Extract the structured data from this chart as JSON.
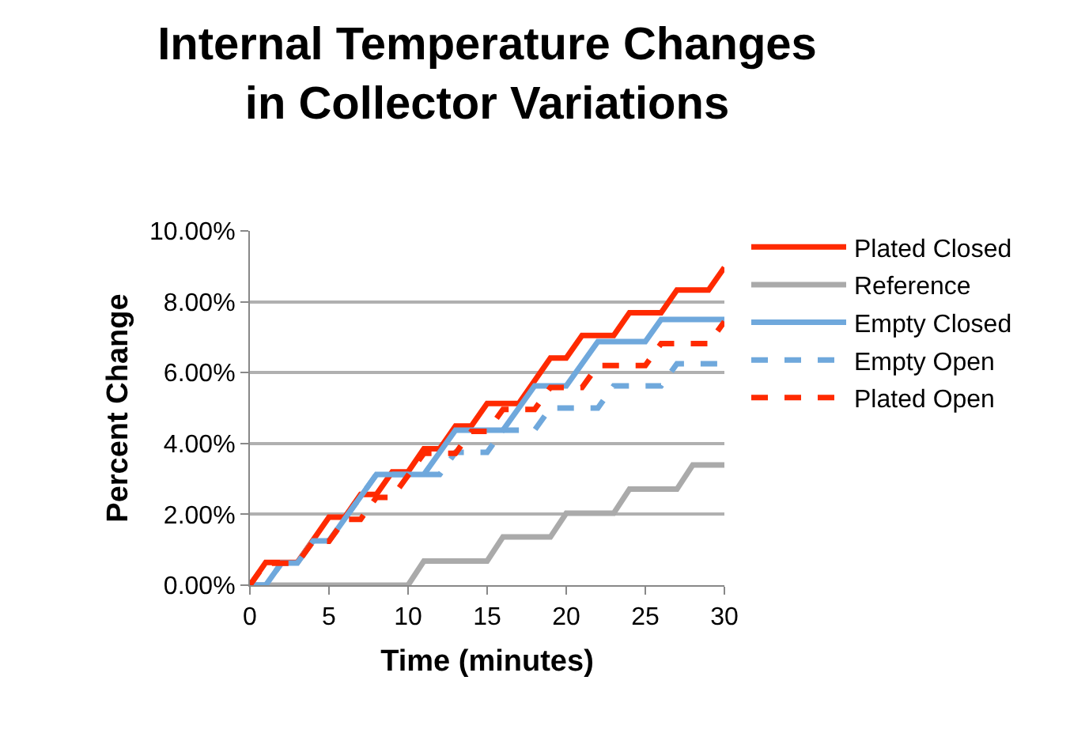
{
  "chart_data": {
    "type": "line",
    "title": "Internal Temperature Changes in Collector Variations",
    "xlabel": "Time (minutes)",
    "ylabel": "Percent Change",
    "x": [
      0,
      1,
      2,
      3,
      4,
      5,
      6,
      7,
      8,
      9,
      10,
      11,
      12,
      13,
      14,
      15,
      16,
      17,
      18,
      19,
      20,
      21,
      22,
      23,
      24,
      25,
      26,
      27,
      28,
      29,
      30
    ],
    "series": [
      {
        "name": "Plated Closed",
        "color": "#ff2a00",
        "line_style": "solid",
        "values": [
          0,
          0.64,
          0.64,
          0.64,
          1.28,
          1.92,
          1.92,
          2.56,
          2.56,
          3.2,
          3.2,
          3.85,
          3.85,
          4.49,
          4.49,
          5.13,
          5.13,
          5.13,
          5.77,
          6.41,
          6.41,
          7.05,
          7.05,
          7.05,
          7.69,
          7.69,
          7.69,
          8.33,
          8.33,
          8.33,
          8.97
        ]
      },
      {
        "name": "Reference",
        "color": "#aaaaaa",
        "line_style": "solid",
        "values": [
          0,
          0,
          0,
          0,
          0,
          0,
          0,
          0,
          0,
          0,
          0,
          0.68,
          0.68,
          0.68,
          0.68,
          0.68,
          1.36,
          1.36,
          1.36,
          1.36,
          2.03,
          2.03,
          2.03,
          2.03,
          2.71,
          2.71,
          2.71,
          2.71,
          3.39,
          3.39,
          3.39
        ]
      },
      {
        "name": "Empty Closed",
        "color": "#6fa8dc",
        "line_style": "solid",
        "values": [
          0,
          0,
          0.625,
          0.625,
          1.25,
          1.25,
          1.875,
          2.5,
          3.125,
          3.125,
          3.125,
          3.125,
          3.75,
          4.375,
          4.375,
          4.375,
          4.375,
          5.0,
          5.625,
          5.625,
          5.625,
          6.25,
          6.875,
          6.875,
          6.875,
          6.875,
          7.5,
          7.5,
          7.5,
          7.5,
          7.5
        ]
      },
      {
        "name": "Empty Open",
        "color": "#6fa8dc",
        "line_style": "dashed",
        "values": [
          0,
          0,
          0.625,
          0.625,
          1.25,
          1.25,
          1.875,
          2.5,
          3.125,
          3.125,
          3.125,
          3.125,
          3.125,
          3.75,
          3.75,
          3.75,
          4.375,
          4.375,
          4.375,
          5.0,
          5.0,
          5.0,
          5.0,
          5.625,
          5.625,
          5.625,
          5.625,
          6.25,
          6.25,
          6.25,
          6.25
        ]
      },
      {
        "name": "Plated Open",
        "color": "#ff2a00",
        "line_style": "dashed",
        "values": [
          0,
          0.62,
          0.62,
          0.62,
          1.24,
          1.24,
          1.86,
          1.86,
          2.48,
          2.48,
          3.1,
          3.72,
          3.72,
          3.72,
          4.34,
          4.34,
          4.96,
          4.96,
          4.96,
          5.58,
          5.58,
          5.58,
          6.2,
          6.2,
          6.2,
          6.2,
          6.82,
          6.82,
          6.82,
          6.82,
          7.44
        ]
      }
    ],
    "xlim": [
      0,
      30
    ],
    "xticks": [
      0,
      5,
      10,
      15,
      20,
      25,
      30
    ],
    "ylim": [
      0,
      10
    ],
    "yticks": [
      {
        "value": 0,
        "label": "0.00%"
      },
      {
        "value": 2,
        "label": "2.00%"
      },
      {
        "value": 4,
        "label": "4.00%"
      },
      {
        "value": 6,
        "label": "6.00%"
      },
      {
        "value": 8,
        "label": "8.00%"
      },
      {
        "value": 10,
        "label": "10.00%"
      }
    ],
    "grid": "y",
    "legend": "right",
    "marker": "none"
  }
}
